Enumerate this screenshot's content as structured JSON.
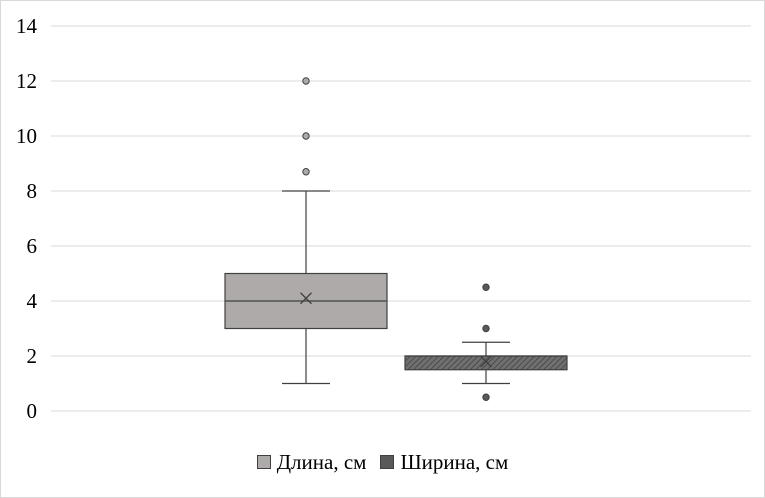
{
  "chart_data": {
    "type": "box",
    "ylim": [
      0,
      14
    ],
    "yticks": [
      0,
      2,
      4,
      6,
      8,
      10,
      12,
      14
    ],
    "grid": true,
    "legend_position": "bottom",
    "series": [
      {
        "name": "Длина, см",
        "fill": "#aeaaaa",
        "whisker_low": 1,
        "q1": 3,
        "median": 4,
        "q3": 5,
        "whisker_high": 8,
        "mean": 4.1,
        "outliers": [
          8.7,
          10,
          12
        ]
      },
      {
        "name": "Ширина, см",
        "fill": "#595959",
        "whisker_low": 1,
        "q1": 1.5,
        "median": 2,
        "q3": 2,
        "whisker_high": 2.5,
        "mean": 1.8,
        "outliers": [
          0.5,
          3,
          4.5
        ]
      }
    ]
  }
}
